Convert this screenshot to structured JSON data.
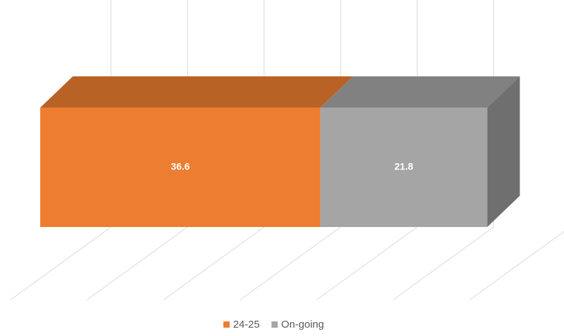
{
  "chart_data": {
    "type": "bar3d_stacked_horizontal",
    "categories": [
      null
    ],
    "series": [
      {
        "name": "24-25",
        "color": "#ED7D31",
        "values": [
          36.6
        ]
      },
      {
        "name": "On-going",
        "color": "#A5A5A5",
        "values": [
          21.8
        ]
      }
    ],
    "xlim": [
      0,
      60
    ],
    "xticks": [
      0,
      10,
      20,
      30,
      40,
      50,
      60
    ],
    "grid": true,
    "legend": "bottom"
  }
}
